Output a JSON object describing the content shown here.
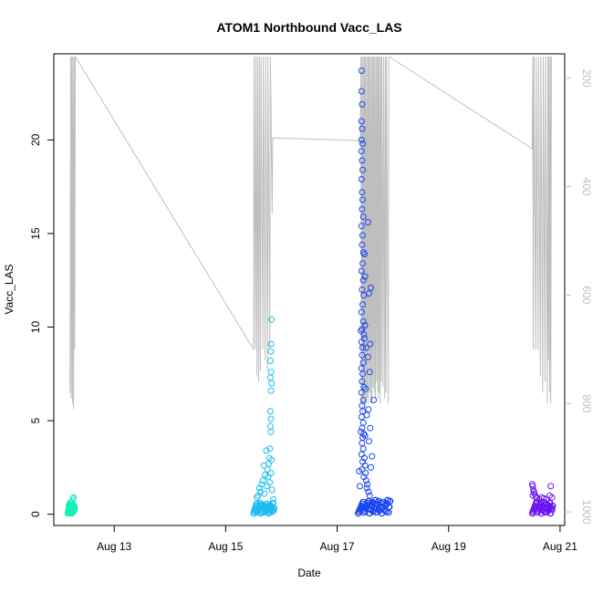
{
  "chart_data": {
    "type": "scatter",
    "title": "ATOM1 Northbound Vacc_LAS",
    "xlabel": "Date",
    "ylabel": "Vacc_LAS",
    "x_axis": {
      "type": "date",
      "range": [
        "2023-08-11T22:00",
        "2023-08-21T02:00"
      ],
      "ticks": [
        {
          "date": "2023-08-13T00:00",
          "label": "Aug 13"
        },
        {
          "date": "2023-08-15T00:00",
          "label": "Aug 15"
        },
        {
          "date": "2023-08-17T00:00",
          "label": "Aug 17"
        },
        {
          "date": "2023-08-19T00:00",
          "label": "Aug 19"
        },
        {
          "date": "2023-08-21T00:00",
          "label": "Aug 21"
        }
      ]
    },
    "y_axis": {
      "range": [
        -0.6,
        24.6
      ],
      "ticks": [
        0,
        5,
        10,
        15,
        20
      ]
    },
    "secondary_y_axis": {
      "label": "",
      "inverted": true,
      "range": [
        1025,
        155
      ],
      "ticks": [
        200,
        400,
        600,
        800,
        1000
      ],
      "line_color": "#bebebe"
    },
    "grid": false,
    "legend": "none",
    "point_style": "open-circle",
    "depth_series": [
      [
        "2023-08-12T05:00",
        780
      ],
      [
        "2023-08-12T05:15",
        160
      ],
      [
        "2023-08-12T05:30",
        790
      ],
      [
        "2023-08-12T05:45",
        160
      ],
      [
        "2023-08-12T06:00",
        800
      ],
      [
        "2023-08-12T06:15",
        160
      ],
      [
        "2023-08-12T06:30",
        810
      ],
      [
        "2023-08-12T06:45",
        160
      ],
      [
        "2023-08-12T07:00",
        700
      ],
      [
        "2023-08-12T07:15",
        160
      ],
      [
        "2023-08-15T12:00",
        700
      ],
      [
        "2023-08-15T12:15",
        160
      ],
      [
        "2023-08-15T12:45",
        700
      ],
      [
        "2023-08-15T13:00",
        160
      ],
      [
        "2023-08-15T13:30",
        750
      ],
      [
        "2023-08-15T13:45",
        160
      ],
      [
        "2023-08-15T14:15",
        760
      ],
      [
        "2023-08-15T14:30",
        160
      ],
      [
        "2023-08-15T15:00",
        740
      ],
      [
        "2023-08-15T15:15",
        160
      ],
      [
        "2023-08-15T16:00",
        700
      ],
      [
        "2023-08-15T16:15",
        160
      ],
      [
        "2023-08-15T17:00",
        720
      ],
      [
        "2023-08-15T17:15",
        160
      ],
      [
        "2023-08-15T18:00",
        740
      ],
      [
        "2023-08-15T18:15",
        160
      ],
      [
        "2023-08-15T19:00",
        700
      ],
      [
        "2023-08-15T19:15",
        160
      ],
      [
        "2023-08-15T20:00",
        450
      ],
      [
        "2023-08-15T20:15",
        310
      ],
      [
        "2023-08-17T10:00",
        315
      ],
      [
        "2023-08-17T10:15",
        160
      ],
      [
        "2023-08-17T10:30",
        800
      ],
      [
        "2023-08-17T10:45",
        160
      ],
      [
        "2023-08-17T11:00",
        820
      ],
      [
        "2023-08-17T11:15",
        160
      ],
      [
        "2023-08-17T11:30",
        800
      ],
      [
        "2023-08-17T11:45",
        160
      ],
      [
        "2023-08-17T12:00",
        810
      ],
      [
        "2023-08-17T12:15",
        160
      ],
      [
        "2023-08-17T12:30",
        800
      ],
      [
        "2023-08-17T12:45",
        160
      ],
      [
        "2023-08-17T13:00",
        790
      ],
      [
        "2023-08-17T13:15",
        160
      ],
      [
        "2023-08-17T13:30",
        800
      ],
      [
        "2023-08-17T13:45",
        160
      ],
      [
        "2023-08-17T14:00",
        780
      ],
      [
        "2023-08-17T14:15",
        160
      ],
      [
        "2023-08-17T14:30",
        800
      ],
      [
        "2023-08-17T14:45",
        160
      ],
      [
        "2023-08-17T15:00",
        800
      ],
      [
        "2023-08-17T15:15",
        160
      ],
      [
        "2023-08-17T15:30",
        770
      ],
      [
        "2023-08-17T15:45",
        160
      ],
      [
        "2023-08-17T16:00",
        780
      ],
      [
        "2023-08-17T16:15",
        160
      ],
      [
        "2023-08-17T16:30",
        790
      ],
      [
        "2023-08-17T16:45",
        160
      ],
      [
        "2023-08-17T17:00",
        760
      ],
      [
        "2023-08-17T17:15",
        160
      ],
      [
        "2023-08-17T17:30",
        790
      ],
      [
        "2023-08-17T17:45",
        160
      ],
      [
        "2023-08-17T18:00",
        780
      ],
      [
        "2023-08-17T18:15",
        160
      ],
      [
        "2023-08-17T18:30",
        800
      ],
      [
        "2023-08-17T18:45",
        160
      ],
      [
        "2023-08-17T19:00",
        760
      ],
      [
        "2023-08-17T19:15",
        160
      ],
      [
        "2023-08-17T19:45",
        770
      ],
      [
        "2023-08-17T20:00",
        160
      ],
      [
        "2023-08-17T20:30",
        790
      ],
      [
        "2023-08-17T20:45",
        160
      ],
      [
        "2023-08-17T21:00",
        780
      ],
      [
        "2023-08-17T21:15",
        160
      ],
      [
        "2023-08-17T22:00",
        800
      ],
      [
        "2023-08-17T22:15",
        160
      ],
      [
        "2023-08-20T12:00",
        330
      ],
      [
        "2023-08-20T12:15",
        160
      ],
      [
        "2023-08-20T12:30",
        700
      ],
      [
        "2023-08-20T12:45",
        160
      ],
      [
        "2023-08-20T13:30",
        700
      ],
      [
        "2023-08-20T13:45",
        160
      ],
      [
        "2023-08-20T14:30",
        700
      ],
      [
        "2023-08-20T14:45",
        160
      ],
      [
        "2023-08-20T15:30",
        750
      ],
      [
        "2023-08-20T15:45",
        160
      ],
      [
        "2023-08-20T16:30",
        780
      ],
      [
        "2023-08-20T16:45",
        160
      ],
      [
        "2023-08-20T17:30",
        760
      ],
      [
        "2023-08-20T17:45",
        160
      ],
      [
        "2023-08-20T18:30",
        800
      ],
      [
        "2023-08-20T18:45",
        160
      ],
      [
        "2023-08-20T19:00",
        720
      ],
      [
        "2023-08-20T19:15",
        160
      ],
      [
        "2023-08-20T19:30",
        780
      ],
      [
        "2023-08-20T19:45",
        160
      ],
      [
        "2023-08-20T20:00",
        800
      ],
      [
        "2023-08-20T20:15",
        160
      ]
    ],
    "clusters": [
      {
        "color": "#16f0b4",
        "start": "2023-08-12T04:00",
        "end": "2023-08-12T07:00",
        "base_values": [
          0.05,
          0.1,
          0.15,
          0.2,
          0.25,
          0.3,
          0.35,
          0.4,
          0.45,
          0.5,
          0.3,
          0.2,
          0.1,
          0.25,
          0.35,
          0.45,
          0.15,
          0.05,
          0.2,
          0.4,
          0.3,
          0.1,
          0.5,
          0.35,
          0.25,
          0.15,
          0.45,
          0.2,
          0.3,
          0.4
        ],
        "outliers": [
          [
            "2023-08-12T05:30",
            0.65
          ],
          [
            "2023-08-12T06:00",
            0.75
          ],
          [
            "2023-08-12T06:15",
            0.85
          ],
          [
            "2023-08-12T06:30",
            0.9
          ],
          [
            "2023-08-12T05:00",
            0.6
          ],
          [
            "2023-08-12T04:30",
            0.5
          ]
        ]
      },
      {
        "color": "#19bdf0",
        "start": "2023-08-15T12:00",
        "end": "2023-08-15T21:00",
        "base_values": [
          0.05,
          0.15,
          0.25,
          0.35,
          0.45,
          0.55,
          0.1,
          0.2,
          0.3,
          0.4,
          0.5,
          0.6,
          0.05,
          0.2,
          0.35,
          0.5,
          0.1,
          0.3,
          0.45,
          0.25,
          0.15,
          0.4,
          0.55,
          0.2,
          0.35,
          0.05,
          0.3,
          0.5,
          0.1,
          0.45,
          0.25,
          0.4,
          0.15,
          0.6,
          0.2,
          0.35
        ],
        "outliers": [
          [
            "2023-08-15T19:45",
            10.4
          ],
          [
            "2023-08-15T19:30",
            9.1
          ],
          [
            "2023-08-15T19:30",
            8.7
          ],
          [
            "2023-08-15T19:15",
            8.2
          ],
          [
            "2023-08-15T19:30",
            7.6
          ],
          [
            "2023-08-15T19:15",
            7.3
          ],
          [
            "2023-08-15T19:45",
            7.0
          ],
          [
            "2023-08-15T19:30",
            6.6
          ],
          [
            "2023-08-15T19:15",
            5.5
          ],
          [
            "2023-08-15T19:30",
            5.1
          ],
          [
            "2023-08-15T19:15",
            4.7
          ],
          [
            "2023-08-15T19:30",
            4.4
          ],
          [
            "2023-08-15T19:00",
            3.5
          ],
          [
            "2023-08-15T18:45",
            3.0
          ],
          [
            "2023-08-15T19:45",
            2.9
          ],
          [
            "2023-08-15T17:30",
            3.4
          ],
          [
            "2023-08-15T18:30",
            2.7
          ],
          [
            "2023-08-15T18:00",
            2.4
          ],
          [
            "2023-08-15T17:00",
            2.1
          ],
          [
            "2023-08-15T16:30",
            2.6
          ],
          [
            "2023-08-15T16:00",
            1.8
          ],
          [
            "2023-08-15T15:30",
            1.6
          ],
          [
            "2023-08-15T15:00",
            1.2
          ],
          [
            "2023-08-15T14:30",
            1.4
          ],
          [
            "2023-08-15T14:00",
            1.0
          ],
          [
            "2023-08-15T13:30",
            0.9
          ],
          [
            "2023-08-15T18:15",
            2.0
          ],
          [
            "2023-08-15T19:00",
            1.7
          ],
          [
            "2023-08-15T20:00",
            1.3
          ],
          [
            "2023-08-15T17:45",
            1.5
          ],
          [
            "2023-08-15T16:45",
            1.1
          ],
          [
            "2023-08-15T19:30",
            2.2
          ],
          [
            "2023-08-15T20:30",
            0.8
          ]
        ]
      },
      {
        "color": "#1a46f0",
        "start": "2023-08-17T09:00",
        "end": "2023-08-17T23:00",
        "base_values": [
          0.05,
          0.15,
          0.25,
          0.35,
          0.45,
          0.55,
          0.65,
          0.1,
          0.2,
          0.3,
          0.4,
          0.5,
          0.6,
          0.7,
          0.05,
          0.25,
          0.45,
          0.65,
          0.15,
          0.35,
          0.55,
          0.75,
          0.1,
          0.3,
          0.5,
          0.7,
          0.2,
          0.4,
          0.6,
          0.05,
          0.35,
          0.65,
          0.25,
          0.45,
          0.15,
          0.55,
          0.75,
          0.1,
          0.4,
          0.7
        ],
        "outliers": [
          [
            "2023-08-17T10:30",
            23.7
          ],
          [
            "2023-08-17T10:30",
            22.6
          ],
          [
            "2023-08-17T10:45",
            21.9
          ],
          [
            "2023-08-17T10:30",
            21.0
          ],
          [
            "2023-08-17T10:45",
            20.6
          ],
          [
            "2023-08-17T10:30",
            20.0
          ],
          [
            "2023-08-17T11:00",
            19.8
          ],
          [
            "2023-08-17T10:30",
            19.4
          ],
          [
            "2023-08-17T10:45",
            18.9
          ],
          [
            "2023-08-17T11:00",
            18.4
          ],
          [
            "2023-08-17T10:30",
            17.9
          ],
          [
            "2023-08-17T10:45",
            17.2
          ],
          [
            "2023-08-17T11:00",
            16.8
          ],
          [
            "2023-08-17T10:45",
            16.3
          ],
          [
            "2023-08-17T11:15",
            15.9
          ],
          [
            "2023-08-17T10:30",
            15.4
          ],
          [
            "2023-08-17T11:00",
            14.9
          ],
          [
            "2023-08-17T10:45",
            14.4
          ],
          [
            "2023-08-17T11:15",
            14.0
          ],
          [
            "2023-08-17T11:00",
            13.4
          ],
          [
            "2023-08-17T10:30",
            13.0
          ],
          [
            "2023-08-17T11:15",
            12.5
          ],
          [
            "2023-08-17T10:45",
            12.0
          ],
          [
            "2023-08-17T11:30",
            11.7
          ],
          [
            "2023-08-17T11:00",
            11.2
          ],
          [
            "2023-08-17T10:30",
            10.8
          ],
          [
            "2023-08-17T11:15",
            10.3
          ],
          [
            "2023-08-17T10:45",
            9.9
          ],
          [
            "2023-08-17T11:30",
            9.6
          ],
          [
            "2023-08-17T10:15",
            9.8
          ],
          [
            "2023-08-17T10:30",
            9.2
          ],
          [
            "2023-08-17T11:00",
            8.9
          ],
          [
            "2023-08-17T10:45",
            8.5
          ],
          [
            "2023-08-17T11:15",
            8.1
          ],
          [
            "2023-08-17T10:30",
            7.8
          ],
          [
            "2023-08-17T11:00",
            7.5
          ],
          [
            "2023-08-17T10:45",
            7.1
          ],
          [
            "2023-08-17T11:30",
            6.8
          ],
          [
            "2023-08-17T10:30",
            6.5
          ],
          [
            "2023-08-17T11:15",
            6.1
          ],
          [
            "2023-08-17T10:45",
            5.8
          ],
          [
            "2023-08-17T11:00",
            5.5
          ],
          [
            "2023-08-17T10:30",
            5.2
          ],
          [
            "2023-08-17T11:15",
            4.9
          ],
          [
            "2023-08-17T10:45",
            4.6
          ],
          [
            "2023-08-17T10:15",
            4.4
          ],
          [
            "2023-08-17T11:30",
            4.3
          ],
          [
            "2023-08-17T11:00",
            4.1
          ],
          [
            "2023-08-17T10:45",
            3.8
          ],
          [
            "2023-08-17T11:15",
            3.5
          ],
          [
            "2023-08-17T10:30",
            3.2
          ],
          [
            "2023-08-17T11:45",
            3.0
          ],
          [
            "2023-08-17T11:00",
            2.8
          ],
          [
            "2023-08-17T12:00",
            2.6
          ],
          [
            "2023-08-17T10:45",
            2.4
          ],
          [
            "2023-08-17T12:15",
            2.2
          ],
          [
            "2023-08-17T11:30",
            2.0
          ],
          [
            "2023-08-17T12:30",
            1.8
          ],
          [
            "2023-08-17T13:00",
            1.6
          ],
          [
            "2023-08-17T12:45",
            1.4
          ],
          [
            "2023-08-17T13:30",
            1.2
          ],
          [
            "2023-08-17T14:00",
            1.0
          ],
          [
            "2023-08-17T09:30",
            2.3
          ],
          [
            "2023-08-17T09:45",
            1.5
          ],
          [
            "2023-08-17T13:15",
            15.6
          ],
          [
            "2023-08-17T14:30",
            12.1
          ],
          [
            "2023-08-17T13:45",
            11.8
          ],
          [
            "2023-08-17T14:15",
            9.1
          ],
          [
            "2023-08-17T13:15",
            8.4
          ],
          [
            "2023-08-17T14:00",
            7.6
          ],
          [
            "2023-08-17T15:45",
            6.1
          ],
          [
            "2023-08-17T13:30",
            5.6
          ],
          [
            "2023-08-17T14:15",
            4.6
          ],
          [
            "2023-08-17T13:45",
            3.9
          ],
          [
            "2023-08-17T15:00",
            3.1
          ],
          [
            "2023-08-17T14:30",
            2.5
          ],
          [
            "2023-08-17T12:00",
            10.1
          ],
          [
            "2023-08-17T12:30",
            8.9
          ],
          [
            "2023-08-17T12:15",
            6.7
          ],
          [
            "2023-08-17T12:45",
            5.3
          ],
          [
            "2023-08-17T12:00",
            4.2
          ],
          [
            "2023-08-17T11:45",
            13.9
          ],
          [
            "2023-08-17T12:00",
            12.7
          ],
          [
            "2023-08-17T11:45",
            9.4
          ]
        ]
      },
      {
        "color": "#6a14f0",
        "start": "2023-08-20T12:00",
        "end": "2023-08-20T21:00",
        "base_values": [
          0.05,
          0.15,
          0.25,
          0.35,
          0.45,
          0.55,
          0.65,
          0.1,
          0.2,
          0.3,
          0.4,
          0.5,
          0.6,
          0.05,
          0.25,
          0.45,
          0.65,
          0.15,
          0.35,
          0.55,
          0.1,
          0.3,
          0.5,
          0.2,
          0.4,
          0.6,
          0.05,
          0.35,
          0.25,
          0.45
        ],
        "outliers": [
          [
            "2023-08-20T12:00",
            1.6
          ],
          [
            "2023-08-20T12:15",
            1.5
          ],
          [
            "2023-08-20T12:30",
            1.3
          ],
          [
            "2023-08-20T12:45",
            1.2
          ],
          [
            "2023-08-20T13:00",
            1.1
          ],
          [
            "2023-08-20T12:15",
            1.0
          ],
          [
            "2023-08-20T13:30",
            0.95
          ],
          [
            "2023-08-20T14:00",
            0.85
          ],
          [
            "2023-08-20T15:00",
            0.8
          ],
          [
            "2023-08-20T16:00",
            0.9
          ],
          [
            "2023-08-20T17:00",
            0.85
          ],
          [
            "2023-08-20T18:00",
            0.8
          ],
          [
            "2023-08-20T19:30",
            1.0
          ],
          [
            "2023-08-20T20:00",
            1.5
          ],
          [
            "2023-08-20T20:30",
            0.9
          ]
        ]
      }
    ]
  }
}
